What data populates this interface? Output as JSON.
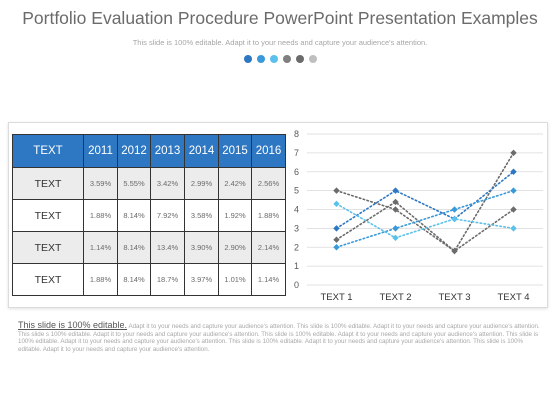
{
  "header": {
    "title": "Portfolio Evaluation Procedure PowerPoint Presentation Examples",
    "subtitle": "This slide is 100% editable. Adapt it to your needs and capture your audience's attention."
  },
  "dot_colors": [
    "#2e77c3",
    "#3a9ad9",
    "#5bc0eb",
    "#7f7f7f",
    "#6b6b6b",
    "#bfbfbf"
  ],
  "table": {
    "header": [
      "TEXT",
      "2011",
      "2012",
      "2013",
      "2014",
      "2015",
      "2016"
    ],
    "rows": [
      {
        "label": "TEXT",
        "values": [
          "3.59%",
          "5.55%",
          "3.42%",
          "2.99%",
          "2.42%",
          "2.56%"
        ]
      },
      {
        "label": "TEXT",
        "values": [
          "1.88%",
          "8.14%",
          "7.92%",
          "3.58%",
          "1.92%",
          "1.88%"
        ]
      },
      {
        "label": "TEXT",
        "values": [
          "1.14%",
          "8.14%",
          "13.4%",
          "3.90%",
          "2.90%",
          "2.14%"
        ]
      },
      {
        "label": "TEXT",
        "values": [
          "1.88%",
          "8.14%",
          "18.7%",
          "3.97%",
          "1.01%",
          "1.14%"
        ]
      }
    ]
  },
  "chart_data": {
    "type": "line",
    "categories": [
      "TEXT 1",
      "TEXT 2",
      "TEXT 3",
      "TEXT 4"
    ],
    "ylim": [
      0,
      8
    ],
    "yticks": [
      "0",
      "1",
      "2",
      "3",
      "4",
      "5",
      "6",
      "7",
      "8"
    ],
    "grid": true,
    "line_style": "dotted",
    "series": [
      {
        "values": [
          2.4,
          4.4,
          1.8,
          7.0
        ],
        "color": "#6b6b6b",
        "marker": "diamond"
      },
      {
        "values": [
          5.0,
          4.0,
          1.8,
          4.0
        ],
        "color": "#6b6b6b",
        "marker": "diamond"
      },
      {
        "values": [
          3.0,
          5.0,
          3.5,
          6.0
        ],
        "color": "#2e77c3",
        "marker": "diamond"
      },
      {
        "values": [
          2.0,
          3.0,
          4.0,
          5.0
        ],
        "color": "#3a9ad9",
        "marker": "diamond"
      },
      {
        "values": [
          4.3,
          2.5,
          3.5,
          3.0
        ],
        "color": "#5bc0eb",
        "marker": "diamond"
      }
    ]
  },
  "footer": {
    "lead": "This slide is 100% editable.",
    "body": "Adapt it to your needs and capture your audience's attention. This slide is 100% editable. Adapt it to your needs and capture your audience's attention. This slide s 100% editable. Adapt it to your needs and capture your audience's attention. This slide is 100% editable. Adapt it to your needs and capture your audience's attention. This slide is 100% editable. Adapt it to your needs and capture your audience's attention. This slide is 100% editable. Adapt it to your needs and capture your audience's attention. This slide is 100% editable. Adapt it to your needs and capture your audience's attention."
  }
}
